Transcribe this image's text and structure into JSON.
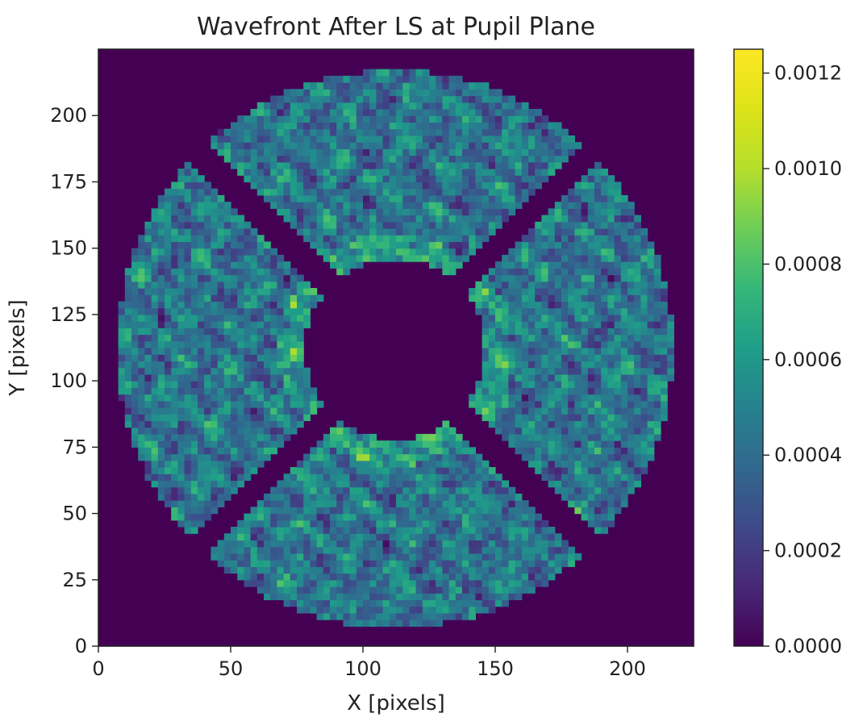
{
  "chart_data": {
    "type": "heatmap",
    "title": "Wavefront After LS at Pupil Plane",
    "xlabel": "X [pixels]",
    "ylabel": "Y [pixels]",
    "xlim": [
      0,
      225
    ],
    "ylim": [
      0,
      225
    ],
    "x_ticks": [
      0,
      50,
      100,
      150,
      200
    ],
    "y_ticks": [
      0,
      25,
      50,
      75,
      100,
      125,
      150,
      175,
      200
    ],
    "colorbar": {
      "colormap": "viridis",
      "range": [
        0.0,
        0.00125
      ],
      "ticks": [
        "0.0000",
        "0.0002",
        "0.0004",
        "0.0006",
        "0.0008",
        "0.0010",
        "0.0012"
      ],
      "tick_values": [
        0.0,
        0.0002,
        0.0004,
        0.0006,
        0.0008,
        0.001,
        0.0012
      ]
    },
    "pupil": {
      "center": [
        112,
        112
      ],
      "outer_radius": 105,
      "central_obscuration_radius": 34,
      "spider_count": 4,
      "spider_angles_deg": [
        45,
        135,
        225,
        315
      ],
      "spider_width": 10
    },
    "grid": false,
    "description_values": {
      "background_value": 0.0,
      "typical_range": [
        0.0001,
        0.0008
      ],
      "peak_value": 0.00125
    }
  }
}
